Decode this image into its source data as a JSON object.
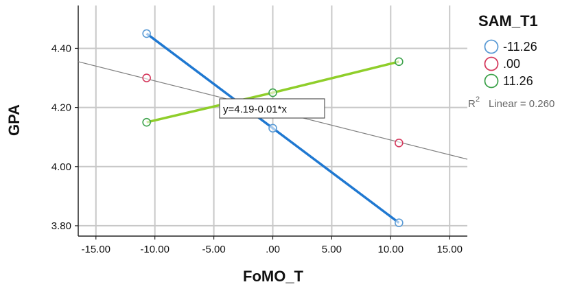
{
  "chart_data": {
    "type": "scatter",
    "xlabel": "FoMO_T",
    "ylabel": "GPA",
    "xlim": [
      -16.5,
      16.5
    ],
    "ylim": [
      3.765,
      4.545
    ],
    "x_ticks": [
      -15,
      -10,
      -5,
      0,
      5,
      10,
      15
    ],
    "x_tick_labels": [
      "-15.00",
      "-10.00",
      "-5.00",
      ".00",
      "5.00",
      "10.00",
      "15.00"
    ],
    "y_ticks": [
      3.8,
      4.0,
      4.2,
      4.4
    ],
    "y_tick_labels": [
      "3.80",
      "4.00",
      "4.20",
      "4.40"
    ],
    "grid": true,
    "legend": {
      "title": "SAM_T1",
      "position": "right"
    },
    "series": [
      {
        "name": "-11.26",
        "color": "#5b9bd5",
        "line_color": "#1f78d1",
        "x": [
          -10.7,
          0,
          10.7
        ],
        "y": [
          4.45,
          4.13,
          3.81
        ]
      },
      {
        "name": ".00",
        "color": "#d5395d",
        "line_color": null,
        "x": [
          -10.7,
          10.7
        ],
        "y": [
          4.3,
          4.08
        ]
      },
      {
        "name": "11.26",
        "color": "#3fa34d",
        "line_color": "#8fce2a",
        "x": [
          -10.7,
          0,
          10.7
        ],
        "y": [
          4.15,
          4.25,
          4.355
        ]
      }
    ],
    "overall_fit": {
      "intercept": 4.19,
      "slope": -0.01,
      "color": "#808080",
      "equation_label": "y=4.19-0.01*x",
      "r2_label": "Linear = 0.260"
    }
  }
}
